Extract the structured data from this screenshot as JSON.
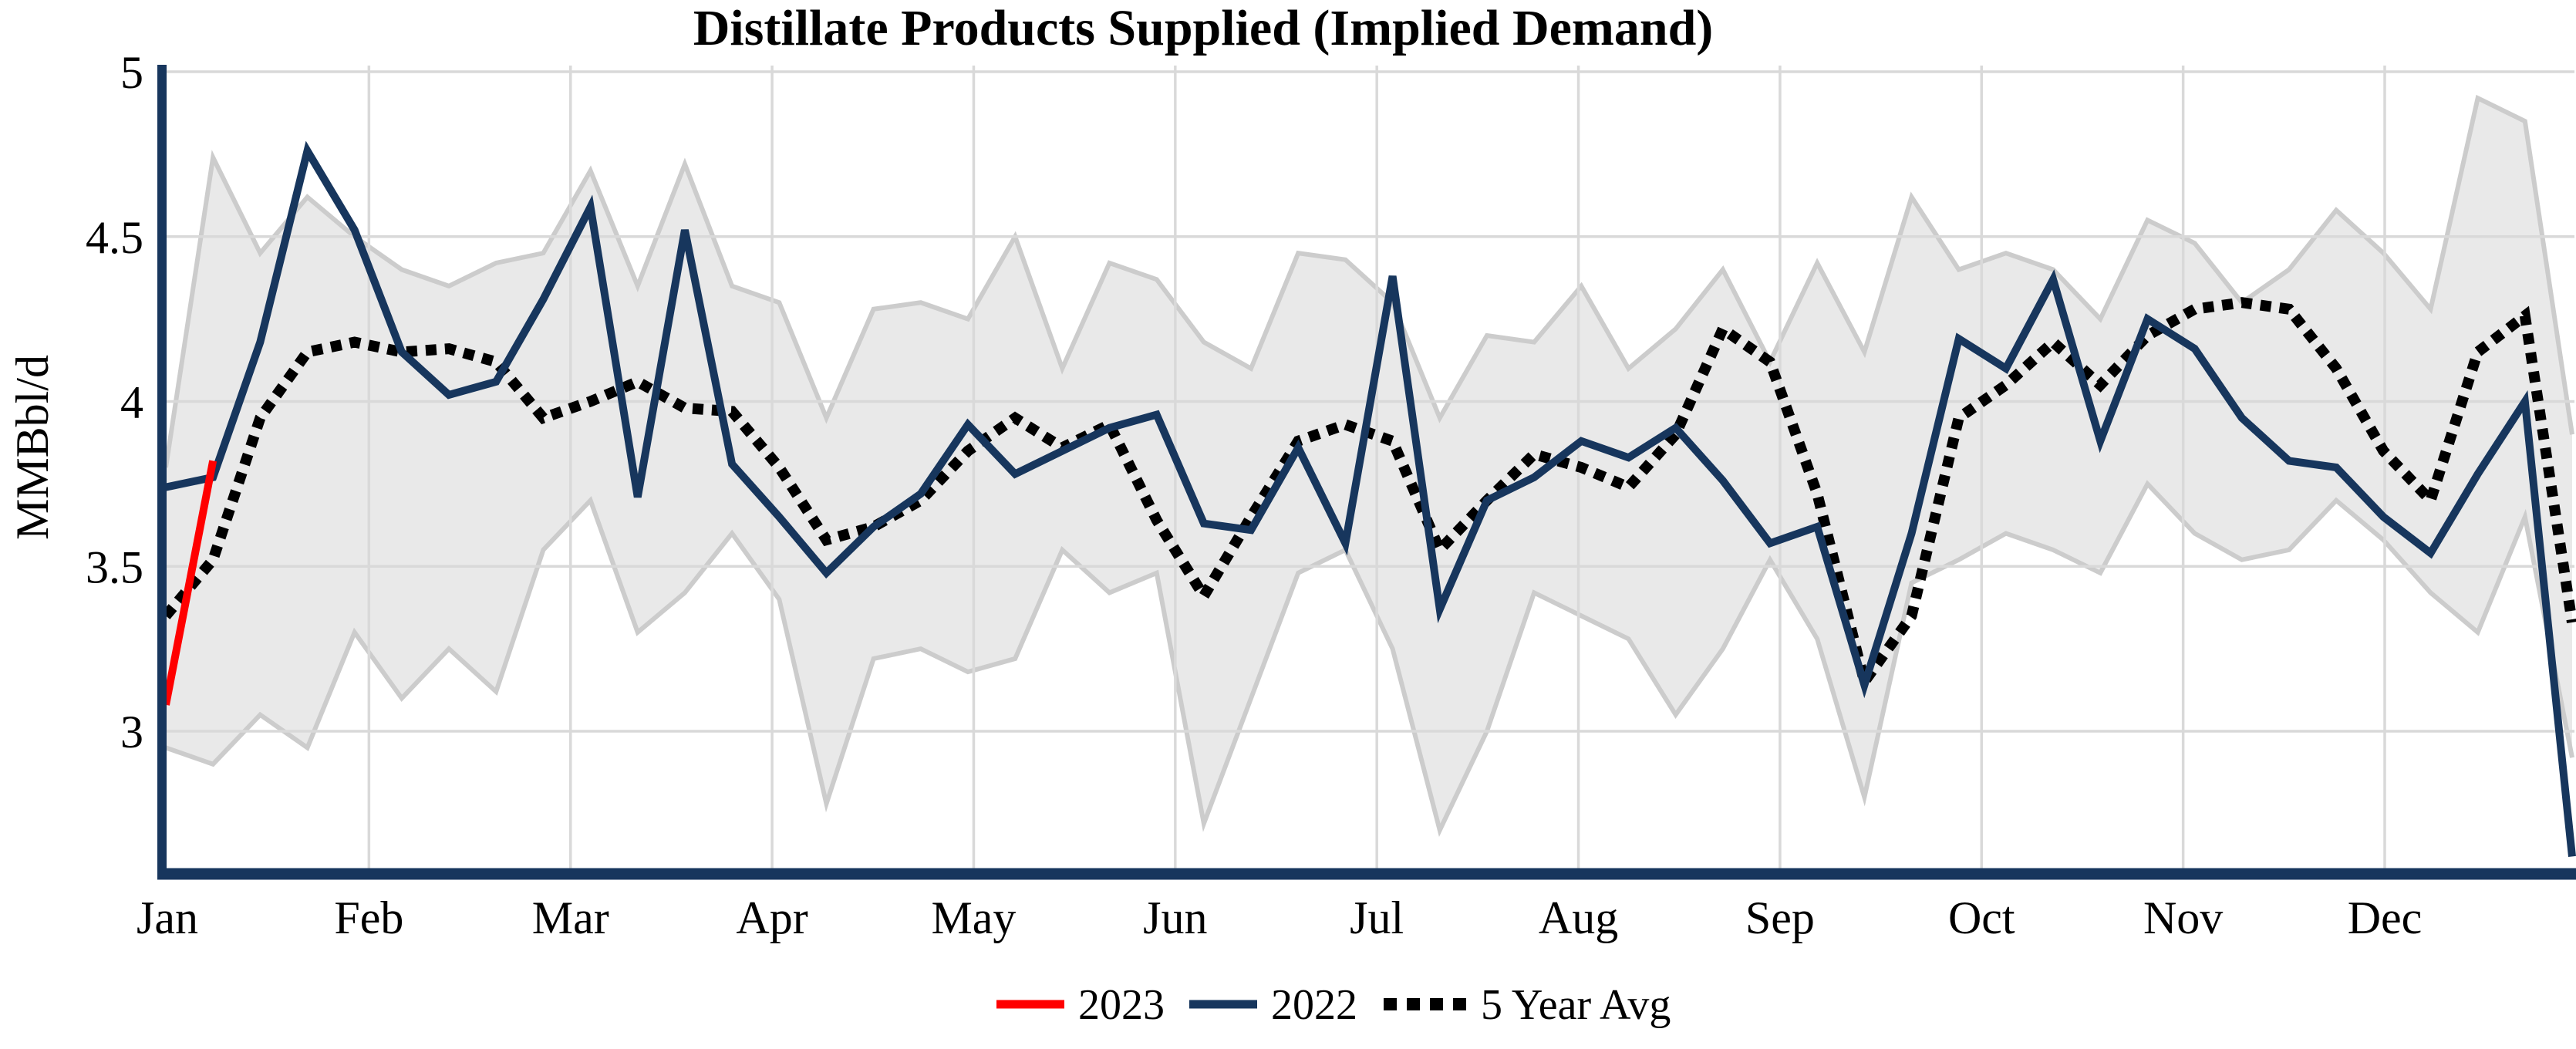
{
  "chart_data": {
    "type": "line",
    "title": "Distillate Products Supplied (Implied Demand)",
    "ylabel": "MMBbl/d",
    "x_axis": {
      "months": [
        "Jan",
        "Feb",
        "Mar",
        "Apr",
        "May",
        "Jun",
        "Jul",
        "Aug",
        "Sep",
        "Oct",
        "Nov",
        "Dec"
      ],
      "points_per_year": 52,
      "unit": "weekly"
    },
    "y_axis": {
      "ticks": [
        5,
        4.5,
        4,
        3.5,
        3
      ],
      "min": 2.56,
      "max": 5
    },
    "grid": true,
    "legend_position": "bottom-center",
    "series": [
      {
        "name": "2023",
        "color": "#FF0000",
        "style": "solid",
        "start_week": 1,
        "values": [
          3.08,
          3.82
        ]
      },
      {
        "name": "2022",
        "color": "#17365D",
        "style": "solid",
        "start_week": 1,
        "values": [
          3.74,
          3.77,
          4.18,
          4.76,
          4.52,
          4.15,
          4.02,
          4.06,
          4.31,
          4.59,
          3.71,
          4.52,
          3.81,
          3.65,
          3.48,
          3.62,
          3.72,
          3.93,
          3.78,
          3.85,
          3.92,
          3.96,
          3.63,
          3.61,
          3.86,
          3.57,
          4.38,
          3.37,
          3.7,
          3.77,
          3.88,
          3.83,
          3.92,
          3.76,
          3.57,
          3.62,
          3.14,
          3.6,
          4.19,
          4.1,
          4.37,
          3.88,
          4.25,
          4.16,
          3.95,
          3.82,
          3.8,
          3.65,
          3.54,
          3.78,
          4.0,
          2.62
        ]
      },
      {
        "name": "5 Year Avg",
        "color": "#000000",
        "style": "dotted",
        "start_week": 1,
        "values": [
          3.35,
          3.52,
          3.95,
          4.15,
          4.18,
          4.15,
          4.16,
          4.12,
          3.95,
          4.0,
          4.06,
          3.98,
          3.97,
          3.8,
          3.58,
          3.62,
          3.7,
          3.85,
          3.95,
          3.86,
          3.93,
          3.64,
          3.41,
          3.65,
          3.88,
          3.93,
          3.88,
          3.55,
          3.7,
          3.84,
          3.8,
          3.74,
          3.9,
          4.22,
          4.12,
          3.72,
          3.15,
          3.35,
          3.95,
          4.05,
          4.18,
          4.05,
          4.2,
          4.28,
          4.3,
          4.28,
          4.1,
          3.85,
          3.7,
          4.15,
          4.26,
          3.33
        ]
      }
    ],
    "band": {
      "name": "5-year-range",
      "fill": "#E9E9E9",
      "edge": "#CCCCCC",
      "top": [
        3.8,
        4.74,
        4.45,
        4.62,
        4.5,
        4.4,
        4.35,
        4.42,
        4.45,
        4.7,
        4.35,
        4.72,
        4.35,
        4.3,
        3.95,
        4.28,
        4.3,
        4.25,
        4.5,
        4.1,
        4.42,
        4.37,
        4.18,
        4.1,
        4.45,
        4.43,
        4.3,
        3.95,
        4.2,
        4.18,
        4.35,
        4.1,
        4.22,
        4.4,
        4.12,
        4.42,
        4.15,
        4.62,
        4.4,
        4.45,
        4.4,
        4.25,
        4.55,
        4.48,
        4.3,
        4.4,
        4.58,
        4.45,
        4.28,
        4.92,
        4.85,
        3.9
      ],
      "bottom": [
        2.95,
        2.9,
        3.05,
        2.95,
        3.3,
        3.1,
        3.25,
        3.12,
        3.55,
        3.7,
        3.3,
        3.42,
        3.6,
        3.4,
        2.78,
        3.22,
        3.25,
        3.18,
        3.22,
        3.55,
        3.42,
        3.48,
        2.72,
        3.1,
        3.48,
        3.55,
        3.25,
        2.7,
        3.0,
        3.42,
        3.35,
        3.28,
        3.05,
        3.25,
        3.52,
        3.28,
        2.8,
        3.45,
        3.52,
        3.6,
        3.55,
        3.48,
        3.75,
        3.6,
        3.52,
        3.55,
        3.7,
        3.58,
        3.42,
        3.3,
        3.65,
        2.92
      ]
    },
    "colors": {
      "axis": "#17365D",
      "gridline": "#D9D9D9",
      "text": "#000000",
      "background": "#FFFFFF"
    }
  }
}
